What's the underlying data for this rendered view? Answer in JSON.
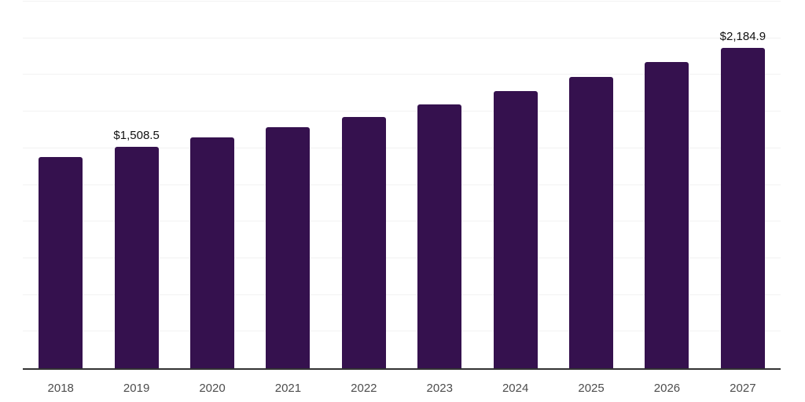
{
  "chart_data": {
    "type": "bar",
    "categories": [
      "2018",
      "2019",
      "2020",
      "2021",
      "2022",
      "2023",
      "2024",
      "2025",
      "2026",
      "2027"
    ],
    "values": [
      1440.0,
      1508.5,
      1574.0,
      1643.5,
      1713.0,
      1797.0,
      1888.0,
      1984.0,
      2085.5,
      2184.9
    ],
    "data_labels": [
      "",
      "$1,508.5",
      "",
      "",
      "",
      "",
      "",
      "",
      "",
      "$2,184.9"
    ],
    "title": "",
    "xlabel": "",
    "ylabel": "",
    "ylim": [
      0,
      2500
    ],
    "gridline_step": 250,
    "grid": "horizontal",
    "legend": "none",
    "y_tick_labels_visible": false,
    "colors": {
      "bar": "#35114e",
      "gridline": "#f2f2f2",
      "axis_line": "#333333",
      "data_label": "#111111",
      "tick_label": "#4d4d4d",
      "background": "#ffffff"
    }
  }
}
